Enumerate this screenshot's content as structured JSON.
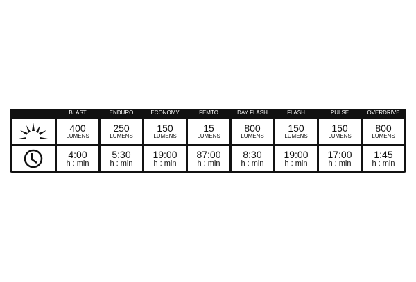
{
  "modes": [
    {
      "name": "BLAST",
      "lumens": "400",
      "runtime": "4:00"
    },
    {
      "name": "ENDURO",
      "lumens": "250",
      "runtime": "5:30"
    },
    {
      "name": "ECONOMY",
      "lumens": "150",
      "runtime": "19:00"
    },
    {
      "name": "FEMTO",
      "lumens": "15",
      "runtime": "87:00"
    },
    {
      "name": "DAY FLASH",
      "lumens": "800",
      "runtime": "8:30"
    },
    {
      "name": "FLASH",
      "lumens": "150",
      "runtime": "19:00"
    },
    {
      "name": "PULSE",
      "lumens": "150",
      "runtime": "17:00"
    },
    {
      "name": "OVERDRIVE",
      "lumens": "800",
      "runtime": "1:45"
    }
  ],
  "lumens_unit": "LUMENS",
  "runtime_unit": "h : min",
  "icons": {
    "brightness": "sunburst-icon",
    "runtime": "clock-icon"
  }
}
